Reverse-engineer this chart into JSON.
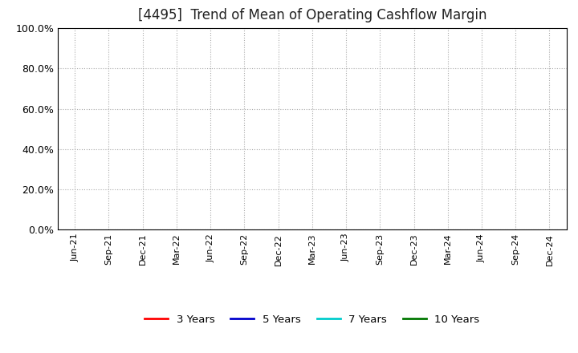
{
  "title": "[4495]  Trend of Mean of Operating Cashflow Margin",
  "title_fontsize": 12,
  "title_color": "#222222",
  "ylim": [
    0.0,
    1.0
  ],
  "yticks": [
    0.0,
    0.2,
    0.4,
    0.6,
    0.8,
    1.0
  ],
  "xtick_labels": [
    "Jun-21",
    "Sep-21",
    "Dec-21",
    "Mar-22",
    "Jun-22",
    "Sep-22",
    "Dec-22",
    "Mar-23",
    "Jun-23",
    "Sep-23",
    "Dec-23",
    "Mar-24",
    "Jun-24",
    "Sep-24",
    "Dec-24"
  ],
  "background_color": "#ffffff",
  "grid_color": "#aaaaaa",
  "legend_entries": [
    "3 Years",
    "5 Years",
    "7 Years",
    "10 Years"
  ],
  "legend_colors": [
    "#ff0000",
    "#0000cc",
    "#00cccc",
    "#007700"
  ],
  "plot_area_bg": "#ffffff"
}
